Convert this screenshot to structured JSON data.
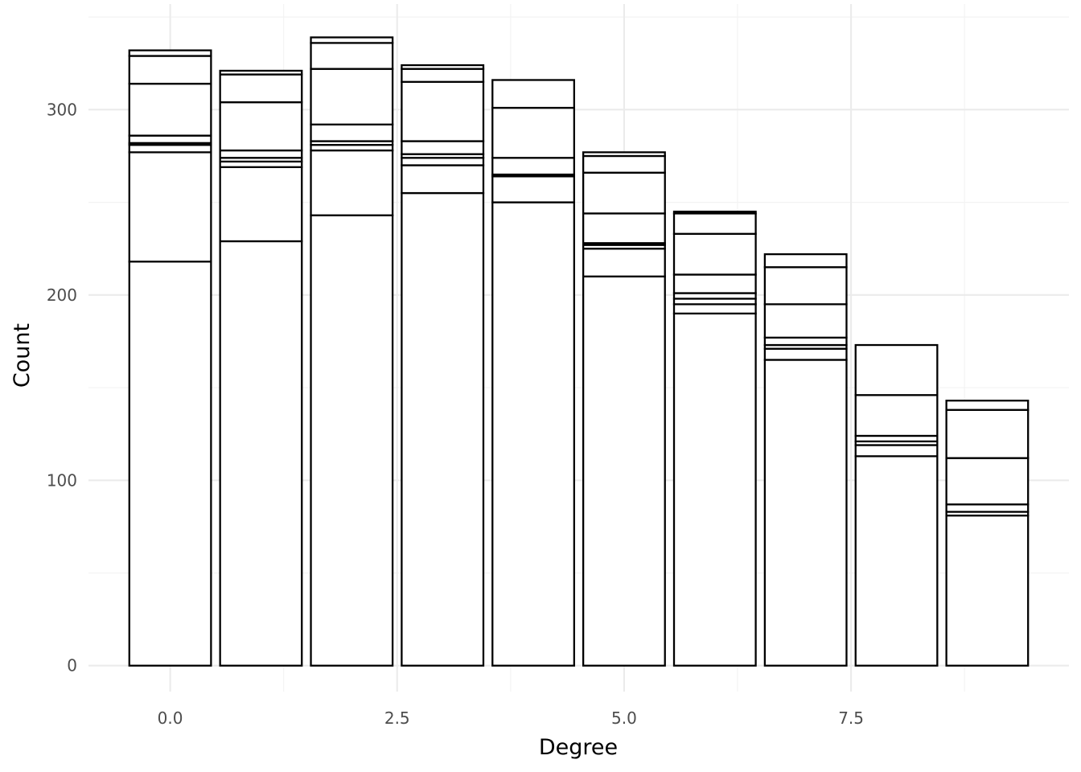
{
  "chart_data": {
    "type": "bar",
    "stacked": true,
    "title": "",
    "xlabel": "Degree",
    "ylabel": "Count",
    "xlim": [
      -0.9,
      9.9
    ],
    "ylim": [
      -14,
      357
    ],
    "x_ticks": [
      {
        "value": 0,
        "label": "0.0"
      },
      {
        "value": 2.5,
        "label": "2.5"
      },
      {
        "value": 5,
        "label": "5.0"
      },
      {
        "value": 7.5,
        "label": "7.5"
      }
    ],
    "y_ticks": [
      {
        "value": 0,
        "label": "0"
      },
      {
        "value": 100,
        "label": "100"
      },
      {
        "value": 200,
        "label": "200"
      },
      {
        "value": 300,
        "label": "300"
      }
    ],
    "grid": true,
    "bar_fill": "#ffffff",
    "bar_outline": "#000000",
    "bars": [
      {
        "x": 0,
        "boundaries": [
          218,
          277,
          281,
          282,
          286,
          314,
          329,
          332
        ]
      },
      {
        "x": 1,
        "boundaries": [
          229,
          269,
          272,
          274,
          278,
          304,
          319,
          321
        ]
      },
      {
        "x": 2,
        "boundaries": [
          243,
          278,
          281,
          283,
          292,
          322,
          336,
          339
        ]
      },
      {
        "x": 3,
        "boundaries": [
          255,
          270,
          274,
          276,
          283,
          315,
          322,
          324
        ]
      },
      {
        "x": 4,
        "boundaries": [
          250,
          264,
          265,
          274,
          301,
          316
        ]
      },
      {
        "x": 5,
        "boundaries": [
          210,
          225,
          227,
          228,
          244,
          266,
          275,
          277
        ]
      },
      {
        "x": 6,
        "boundaries": [
          190,
          195,
          198,
          201,
          211,
          233,
          244,
          245
        ]
      },
      {
        "x": 7,
        "boundaries": [
          165,
          171,
          173,
          177,
          195,
          215,
          222
        ]
      },
      {
        "x": 8,
        "boundaries": [
          113,
          119,
          121,
          124,
          146,
          173
        ]
      },
      {
        "x": 9,
        "boundaries": [
          81,
          83,
          87,
          112,
          138,
          143
        ]
      }
    ]
  }
}
